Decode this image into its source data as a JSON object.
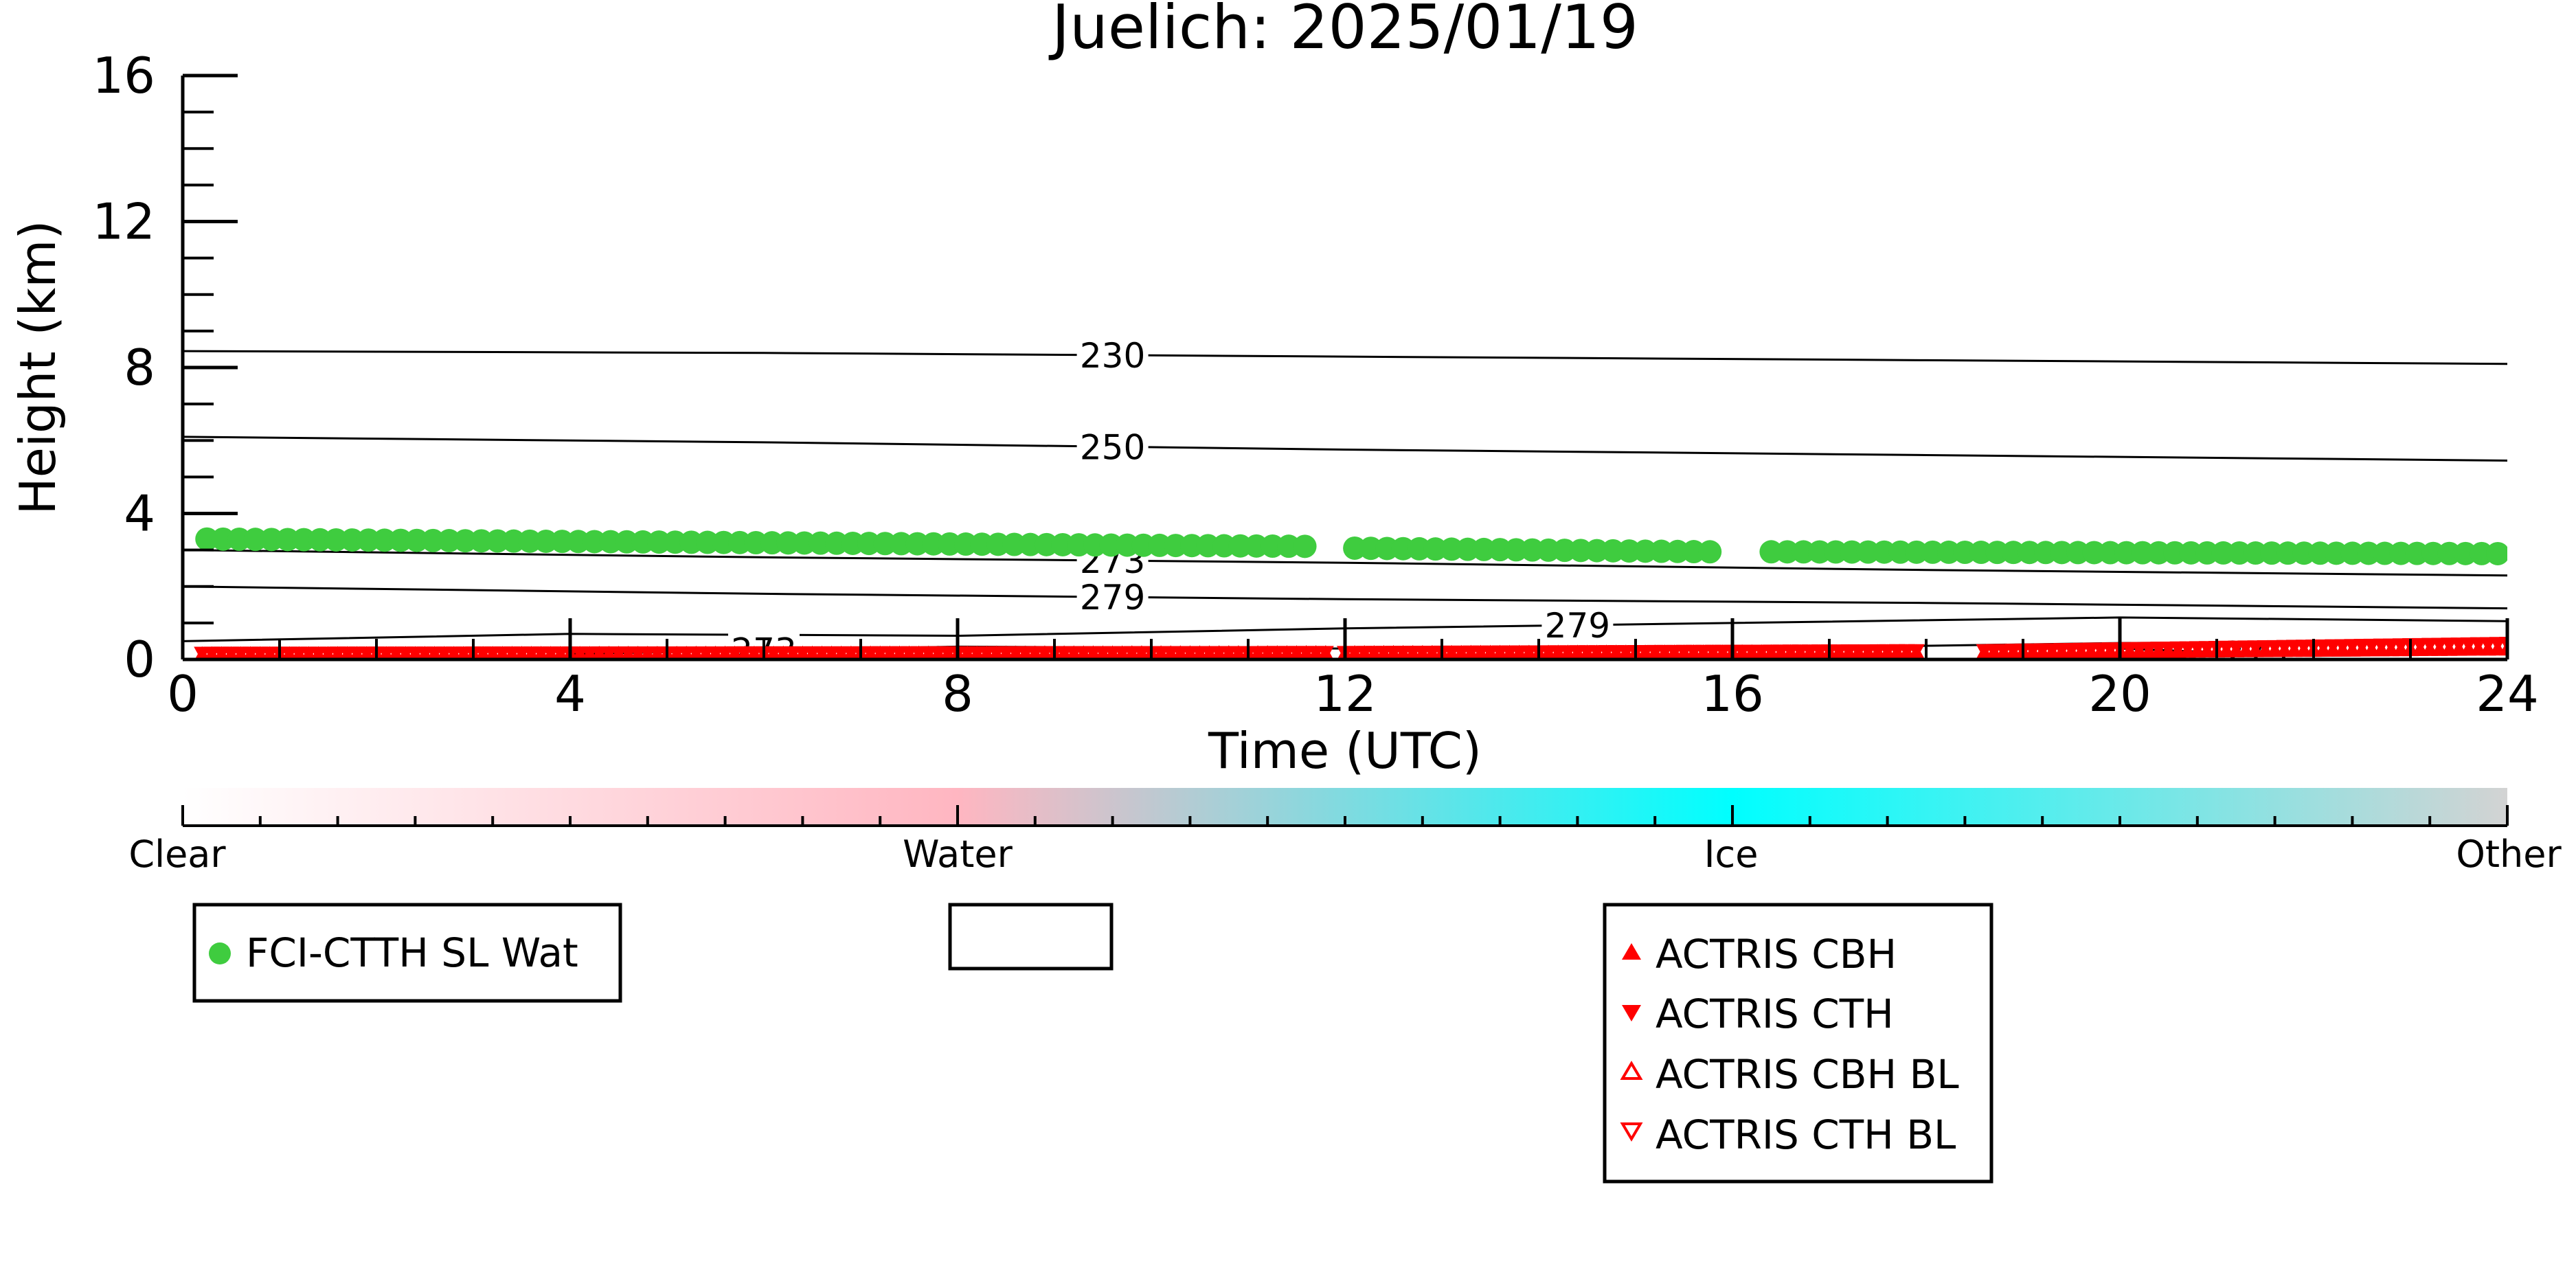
{
  "colors": {
    "fci": "#3fcc3f",
    "actris": "#ff0000",
    "ice_marker": "#7fd8e6",
    "axis": "#000000",
    "scale_clear": "#ffffff",
    "scale_water": "#ffb6c1",
    "scale_ice": "#00ffff",
    "scale_other": "#d3d3d3"
  },
  "chart_data": {
    "type": "scatter",
    "title": "Juelich: 2025/01/19",
    "xlabel": "Time (UTC)",
    "ylabel": "Height (km)",
    "xlim": [
      0,
      24
    ],
    "ylim": [
      0,
      16
    ],
    "x_ticks": [
      0,
      4,
      8,
      12,
      16,
      20,
      24
    ],
    "y_ticks": [
      0,
      4,
      8,
      12,
      16
    ],
    "x_tick_labels": [
      "0",
      "4",
      "8",
      "12",
      "16",
      "20",
      "24"
    ],
    "y_tick_labels": [
      "0",
      "4",
      "8",
      "12",
      "16"
    ],
    "grid": false,
    "contours": [
      {
        "label": "230",
        "points": [
          [
            0,
            8.45
          ],
          [
            6,
            8.4
          ],
          [
            12,
            8.3
          ],
          [
            18,
            8.2
          ],
          [
            24,
            8.1
          ]
        ],
        "label_x": 9.6
      },
      {
        "label": "250",
        "points": [
          [
            0,
            6.1
          ],
          [
            6,
            5.95
          ],
          [
            12,
            5.75
          ],
          [
            18,
            5.6
          ],
          [
            24,
            5.45
          ]
        ],
        "label_x": 9.6
      },
      {
        "label": "273",
        "points": [
          [
            0,
            3.0
          ],
          [
            6,
            2.8
          ],
          [
            12,
            2.65
          ],
          [
            18,
            2.45
          ],
          [
            24,
            2.3
          ]
        ],
        "label_x": 9.6
      },
      {
        "label": "279",
        "points": [
          [
            0,
            2.0
          ],
          [
            6,
            1.8
          ],
          [
            12,
            1.65
          ],
          [
            18,
            1.55
          ],
          [
            24,
            1.4
          ]
        ],
        "label_x": 9.6
      },
      {
        "label": "279",
        "points": [
          [
            0,
            0.5
          ],
          [
            4,
            0.7
          ],
          [
            8,
            0.65
          ],
          [
            12,
            0.85
          ],
          [
            16,
            1.0
          ],
          [
            20,
            1.15
          ],
          [
            24,
            1.05
          ]
        ],
        "label_x": 14.4
      },
      {
        "label": "273",
        "points": [
          [
            4,
            0.15
          ],
          [
            8,
            0.35
          ],
          [
            12,
            0.3
          ],
          [
            16,
            0.3
          ],
          [
            20,
            0.45
          ],
          [
            24,
            0.5
          ]
        ],
        "label_x": 6.0
      },
      {
        "label": "273",
        "points": [
          [
            20,
            0.3
          ],
          [
            22,
            0.1
          ],
          [
            24,
            0.15
          ]
        ],
        "label_x": 21.4
      }
    ],
    "series": [
      {
        "name": "FCI-CTTH SL Wat",
        "marker": "circle",
        "segments": [
          {
            "x_start": 0.25,
            "x_end": 11.75,
            "step": 0.1667,
            "y_start": 3.3,
            "y_end": 3.1
          },
          {
            "x_start": 12.1,
            "x_end": 15.9,
            "step": 0.1667,
            "y_start": 3.05,
            "y_end": 2.95
          },
          {
            "x_start": 16.4,
            "x_end": 23.95,
            "step": 0.1667,
            "y_start": 2.95,
            "y_end": 2.9
          }
        ]
      },
      {
        "name": "ACTRIS CBH",
        "marker": "triangle-up",
        "segments": [
          {
            "x_start": 0.2,
            "x_end": 11.8,
            "step": 0.1,
            "y_start": 0.12,
            "y_end": 0.15
          },
          {
            "x_start": 12.0,
            "x_end": 17.9,
            "step": 0.1,
            "y_start": 0.15,
            "y_end": 0.18
          },
          {
            "x_start": 18.6,
            "x_end": 24.0,
            "step": 0.1,
            "y_start": 0.18,
            "y_end": 0.28
          }
        ]
      },
      {
        "name": "ACTRIS CTH",
        "marker": "triangle-down",
        "segments": [
          {
            "x_start": 0.2,
            "x_end": 11.8,
            "step": 0.1,
            "y_start": 0.18,
            "y_end": 0.2
          },
          {
            "x_start": 12.0,
            "x_end": 17.9,
            "step": 0.1,
            "y_start": 0.2,
            "y_end": 0.25
          },
          {
            "x_start": 18.6,
            "x_end": 24.0,
            "step": 0.1,
            "y_start": 0.25,
            "y_end": 0.45
          }
        ]
      },
      {
        "name": "ACTRIS CBH BL",
        "marker": "triangle-up-open",
        "segments": []
      },
      {
        "name": "ACTRIS CTH BL",
        "marker": "triangle-down-open",
        "segments": []
      }
    ],
    "colorbar": {
      "labels": [
        "Clear",
        "Water",
        "Ice",
        "Other"
      ],
      "stops": [
        0,
        0.3333,
        0.6667,
        1.0
      ]
    },
    "legends": [
      {
        "entries": [
          "FCI-CTTH SL Wat"
        ]
      },
      {
        "entries": []
      },
      {
        "entries": [
          "ACTRIS CBH",
          "ACTRIS CTH",
          "ACTRIS CBH BL",
          "ACTRIS CTH BL"
        ]
      }
    ]
  }
}
